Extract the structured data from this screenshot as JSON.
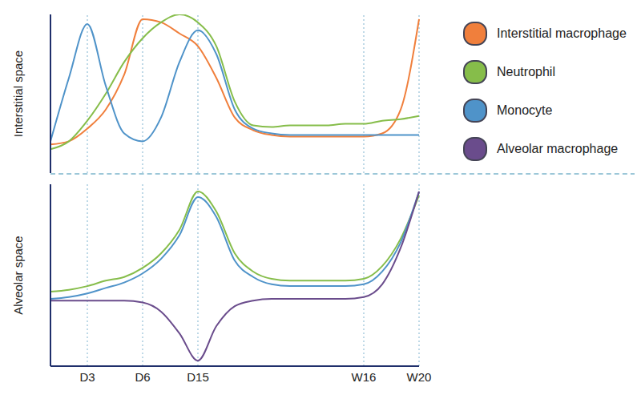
{
  "chart_data": [
    {
      "type": "line",
      "ylabel": "Interstitial space",
      "categories": [
        null,
        null,
        "D3",
        null,
        null,
        "D6",
        null,
        null,
        "D15",
        null,
        null,
        null,
        null,
        null,
        null,
        null,
        null,
        "W16",
        null,
        null,
        "W20"
      ],
      "ylim": [
        0,
        100
      ],
      "tick_labels": false,
      "legend": "right",
      "series": [
        {
          "name": "Interstitial macrophage",
          "color": "#f07f3c",
          "values": [
            18,
            20,
            28,
            40,
            62,
            97,
            95,
            88,
            80,
            60,
            35,
            27,
            24,
            23,
            23,
            23,
            23,
            23,
            25,
            40,
            97
          ]
        },
        {
          "name": "Neutrophil",
          "color": "#86bd4a",
          "values": [
            15,
            20,
            33,
            50,
            70,
            85,
            95,
            100,
            95,
            80,
            45,
            30,
            29,
            30,
            30,
            30,
            31,
            31,
            33,
            34,
            36
          ]
        },
        {
          "name": "Monocyte",
          "color": "#4f93c9",
          "values": [
            20,
            60,
            94,
            55,
            25,
            20,
            35,
            70,
            90,
            75,
            40,
            28,
            25,
            24,
            24,
            24,
            24,
            24,
            24,
            24,
            24
          ]
        }
      ]
    },
    {
      "type": "line",
      "ylabel": "Alveolar space",
      "categories": [
        null,
        null,
        "D3",
        null,
        null,
        "D6",
        null,
        null,
        "D15",
        null,
        null,
        null,
        null,
        null,
        null,
        null,
        null,
        "W16",
        null,
        null,
        "W20"
      ],
      "ylim": [
        0,
        100
      ],
      "tick_labels": "x",
      "series": [
        {
          "name": "Neutrophil",
          "color": "#86bd4a",
          "values": [
            41,
            42,
            44,
            47,
            49,
            54,
            62,
            75,
            96,
            85,
            62,
            52,
            48,
            47,
            47,
            47,
            47,
            48,
            55,
            70,
            94
          ]
        },
        {
          "name": "Monocyte",
          "color": "#4f93c9",
          "values": [
            37,
            38,
            40,
            43,
            46,
            51,
            59,
            72,
            93,
            82,
            58,
            49,
            45,
            44,
            44,
            44,
            44,
            45,
            52,
            68,
            96
          ]
        },
        {
          "name": "Alveolar macrophage",
          "color": "#6a4c8c",
          "values": [
            36,
            36,
            36,
            36,
            36,
            35,
            30,
            18,
            3,
            22,
            33,
            36,
            37,
            37,
            37,
            37,
            37,
            38,
            45,
            65,
            96
          ]
        }
      ]
    }
  ]
}
